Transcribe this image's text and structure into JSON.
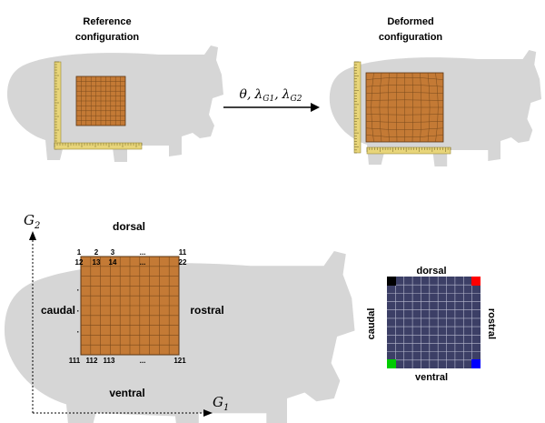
{
  "colors": {
    "pig": "#d6d6d6",
    "tissue_fill": "#c47a35",
    "tissue_grid": "#7a4a1c",
    "tissue_border": "#5a3412",
    "ruler": "#e8d57a",
    "ruler_edge": "#9a8a3a",
    "mesh_bg": "#3c3f66",
    "mesh_grid": "#b8bbd0",
    "corner_black": "#000000",
    "corner_red": "#ff0000",
    "corner_green": "#00cc00",
    "corner_blue": "#0000ff",
    "arrow": "#000000"
  },
  "top_left": {
    "title_line1": "Reference",
    "title_line2": "configuration"
  },
  "top_right": {
    "title_line1": "Deformed",
    "title_line2": "configuration"
  },
  "transform_label": {
    "theta": "θ,",
    "lambda1": "λ",
    "lambda1_sub": "G1",
    "comma": ",",
    "lambda2": "λ",
    "lambda2_sub": "G2"
  },
  "bottom": {
    "axis_y_label": "G",
    "axis_y_sub": "2",
    "axis_x_label": "G",
    "axis_x_sub": "1",
    "dorsal": "dorsal",
    "ventral": "ventral",
    "caudal": "caudal",
    "rostral": "rostral",
    "row1_labels": [
      "1",
      "2",
      "3",
      "...",
      "11"
    ],
    "row2_labels": [
      "12",
      "13",
      "14",
      "...",
      "22"
    ],
    "last_row_labels": [
      "111",
      "112",
      "113",
      "...",
      "121"
    ],
    "left_dots": "·"
  },
  "mesh": {
    "dorsal": "dorsal",
    "ventral": "ventral",
    "caudal": "caudal",
    "rostral": "rostral"
  }
}
